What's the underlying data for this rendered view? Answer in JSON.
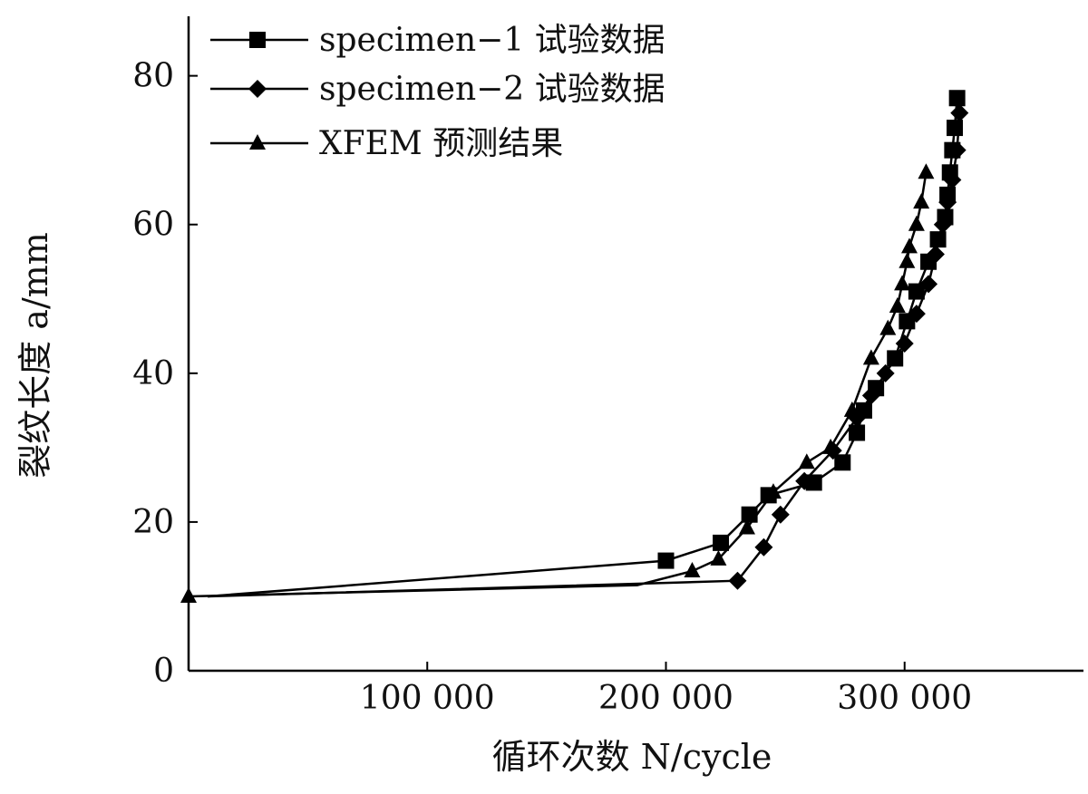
{
  "chart_data": {
    "type": "line",
    "title": "",
    "xlabel": "循环次数 N/cycle",
    "ylabel": "裂纹长度 a/mm",
    "xlim": [
      0,
      370000
    ],
    "ylim": [
      0,
      88
    ],
    "x_ticks": [
      {
        "value": 100000,
        "label": "100 000"
      },
      {
        "value": 200000,
        "label": "200 000"
      },
      {
        "value": 300000,
        "label": "300 000"
      }
    ],
    "y_ticks": [
      {
        "value": 0,
        "label": "0"
      },
      {
        "value": 20,
        "label": "20"
      },
      {
        "value": 40,
        "label": "40"
      },
      {
        "value": 60,
        "label": "60"
      },
      {
        "value": 80,
        "label": "80"
      }
    ],
    "legend_position": "top-left",
    "grid": false,
    "series": [
      {
        "name": "specimen−1 试验数据",
        "marker": "square",
        "points": [
          [
            8000,
            10.0
          ],
          [
            200000,
            14.8
          ],
          [
            223000,
            17.2
          ],
          [
            235000,
            21.0
          ],
          [
            243000,
            23.6
          ],
          [
            262000,
            25.3
          ],
          [
            274000,
            28.0
          ],
          [
            280000,
            32.0
          ],
          [
            283000,
            35.0
          ],
          [
            288000,
            38.0
          ],
          [
            296000,
            42.0
          ],
          [
            301000,
            47.0
          ],
          [
            305000,
            51.0
          ],
          [
            310000,
            55.0
          ],
          [
            314000,
            58.0
          ],
          [
            317000,
            61.0
          ],
          [
            318000,
            64.0
          ],
          [
            319000,
            67.0
          ],
          [
            320000,
            70.0
          ],
          [
            321000,
            73.0
          ],
          [
            322000,
            77.0
          ]
        ],
        "unmarked_points": 1
      },
      {
        "name": "specimen−2 试验数据",
        "marker": "diamond",
        "points": [
          [
            8000,
            10.0
          ],
          [
            230000,
            12.1
          ],
          [
            241000,
            16.6
          ],
          [
            248000,
            21.0
          ],
          [
            258000,
            25.5
          ],
          [
            270000,
            29.6
          ],
          [
            280000,
            34.0
          ],
          [
            286000,
            37.0
          ],
          [
            292000,
            40.0
          ],
          [
            300000,
            44.0
          ],
          [
            305000,
            48.0
          ],
          [
            310000,
            52.0
          ],
          [
            313000,
            56.0
          ],
          [
            316000,
            60.0
          ],
          [
            318000,
            63.0
          ],
          [
            320000,
            66.0
          ],
          [
            322000,
            70.0
          ],
          [
            323000,
            75.0
          ]
        ],
        "unmarked_points": 1
      },
      {
        "name": "XFEM 预测结果",
        "marker": "triangle",
        "points": [
          [
            0,
            10.0
          ],
          [
            188000,
            11.5
          ],
          [
            211000,
            13.4
          ],
          [
            222000,
            15.0
          ],
          [
            234000,
            19.2
          ],
          [
            245000,
            24.0
          ],
          [
            259000,
            28.0
          ],
          [
            269000,
            30.0
          ],
          [
            278000,
            35.0
          ],
          [
            286000,
            42.0
          ],
          [
            293000,
            46.0
          ],
          [
            297000,
            49.0
          ],
          [
            299000,
            52.0
          ],
          [
            301000,
            55.0
          ],
          [
            302000,
            57.0
          ],
          [
            305000,
            60.0
          ],
          [
            307000,
            63.0
          ],
          [
            309000,
            67.0
          ]
        ],
        "unmarked_points": 2
      }
    ]
  }
}
